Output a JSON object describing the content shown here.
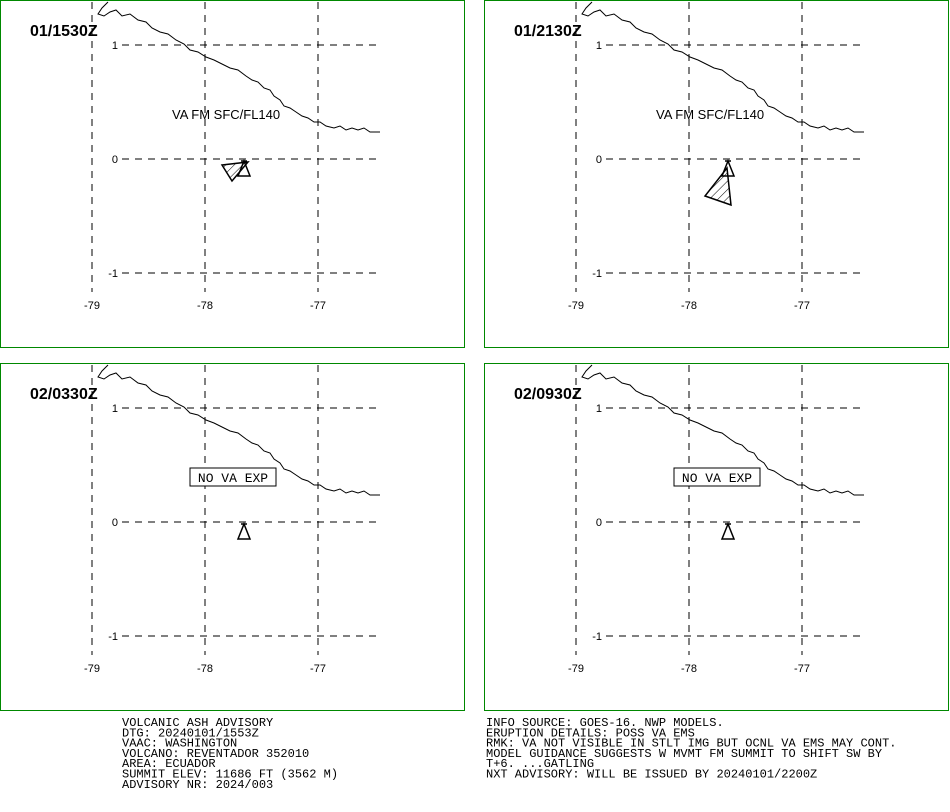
{
  "panels": [
    {
      "time": "01/1530Z",
      "annotation": "VA FM SFC/FL140",
      "ash": "small"
    },
    {
      "time": "01/2130Z",
      "annotation": "VA FM SFC/FL140",
      "ash": "hatched"
    },
    {
      "time": "02/0330Z",
      "boxed_annotation": "NO VA EXP"
    },
    {
      "time": "02/0930Z",
      "boxed_annotation": "NO VA EXP"
    }
  ],
  "x_tick_labels": [
    "-79",
    "-78",
    "-77"
  ],
  "y_tick_labels": [
    "1",
    "0",
    "-1"
  ],
  "advisory_left": [
    "VOLCANIC ASH ADVISORY",
    "DTG: 20240101/1553Z",
    "VAAC: WASHINGTON",
    "VOLCANO: REVENTADOR 352010",
    "AREA: ECUADOR",
    "SUMMIT ELEV: 11686 FT (3562 M)",
    "ADVISORY NR: 2024/003"
  ],
  "advisory_right": [
    "INFO SOURCE: GOES-16. NWP MODELS.",
    "ERUPTION DETAILS: POSS VA EMS",
    "RMK: VA NOT VISIBLE IN STLT IMG BUT OCNL VA EMS MAY CONT.",
    "MODEL GUIDANCE SUGGESTS W MVMT FM SUMMIT TO SHIFT SW BY",
    "T+6. ...GATLING",
    "NXT ADVISORY: WILL BE ISSUED BY 20240101/2200Z"
  ]
}
